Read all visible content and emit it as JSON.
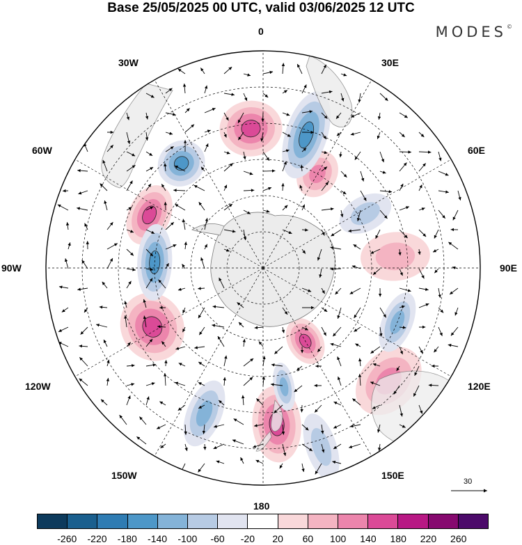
{
  "title": "Base 25/05/2025 00 UTC, valid 03/06/2025 12 UTC",
  "brand": {
    "text": "MODES",
    "mark": "©"
  },
  "longitude_labels": {
    "lon_0": "0",
    "lon_30e": "30E",
    "lon_60e": "60E",
    "lon_90e": "90E",
    "lon_120e": "120E",
    "lon_150e": "150E",
    "lon_180": "180",
    "lon_150w": "150W",
    "lon_120w": "120W",
    "lon_90w": "90W",
    "lon_60w": "60W",
    "lon_30w": "30W"
  },
  "vector_reference": {
    "label": "30"
  },
  "colorbar": {
    "colors": [
      "#0d3a5c",
      "#1a5f8e",
      "#2f7cb3",
      "#4d97c8",
      "#84b3d8",
      "#b7cbe4",
      "#e1e4f0",
      "#ffffff",
      "#f9d8da",
      "#f4b4c2",
      "#ec85ac",
      "#db4a97",
      "#b81884",
      "#86096f",
      "#4c0a6a"
    ],
    "tick_labels": [
      "-260",
      "-220",
      "-180",
      "-140",
      "-100",
      "-60",
      "-20",
      "20",
      "60",
      "100",
      "140",
      "180",
      "220",
      "260"
    ]
  },
  "anomalies": [
    {
      "id": "pos-1",
      "sign": "positive",
      "intensity": 3,
      "lon": -5,
      "lat": -32,
      "rx": 45,
      "ry": 40
    },
    {
      "id": "pos-2",
      "sign": "positive",
      "intensity": 2,
      "lon": 30,
      "lat": -45,
      "rx": 28,
      "ry": 35
    },
    {
      "id": "pos-3",
      "sign": "positive",
      "intensity": 3,
      "lon": -65,
      "lat": -38,
      "rx": 45,
      "ry": 30
    },
    {
      "id": "pos-4",
      "sign": "positive",
      "intensity": 3,
      "lon": -118,
      "lat": -38,
      "rx": 50,
      "ry": 45
    },
    {
      "id": "pos-5",
      "sign": "positive",
      "intensity": 3,
      "lon": 150,
      "lat": -55,
      "rx": 25,
      "ry": 35
    },
    {
      "id": "pos-6",
      "sign": "positive",
      "intensity": 3,
      "lon": 175,
      "lat": -25,
      "rx": 35,
      "ry": 55
    },
    {
      "id": "pos-7",
      "sign": "positive",
      "intensity": 2,
      "lon": 132,
      "lat": -20,
      "rx": 55,
      "ry": 40
    },
    {
      "id": "pos-8",
      "sign": "positive",
      "intensity": 1,
      "lon": 85,
      "lat": -35,
      "rx": 35,
      "ry": 50
    },
    {
      "id": "neg-1",
      "sign": "negative",
      "intensity": 3,
      "lon": -38,
      "lat": -35,
      "rx": 35,
      "ry": 32
    },
    {
      "id": "neg-2",
      "sign": "negative",
      "intensity": 3,
      "lon": 18,
      "lat": -32,
      "rx": 30,
      "ry": 65
    },
    {
      "id": "neg-3",
      "sign": "negative",
      "intensity": 3,
      "lon": -87,
      "lat": -45,
      "rx": 55,
      "ry": 25
    },
    {
      "id": "neg-4",
      "sign": "negative",
      "intensity": 2,
      "lon": 170,
      "lat": -40,
      "rx": 15,
      "ry": 35
    },
    {
      "id": "neg-5",
      "sign": "negative",
      "intensity": 2,
      "lon": -158,
      "lat": -25,
      "rx": 25,
      "ry": 50
    },
    {
      "id": "neg-6",
      "sign": "negative",
      "intensity": 2,
      "lon": 112,
      "lat": -30,
      "rx": 45,
      "ry": 22
    },
    {
      "id": "neg-7",
      "sign": "negative",
      "intensity": 1,
      "lon": 62,
      "lat": -42,
      "rx": 25,
      "ry": 40
    },
    {
      "id": "neg-8",
      "sign": "negative",
      "intensity": 1,
      "lon": 162,
      "lat": -12,
      "rx": 22,
      "ry": 50
    }
  ]
}
